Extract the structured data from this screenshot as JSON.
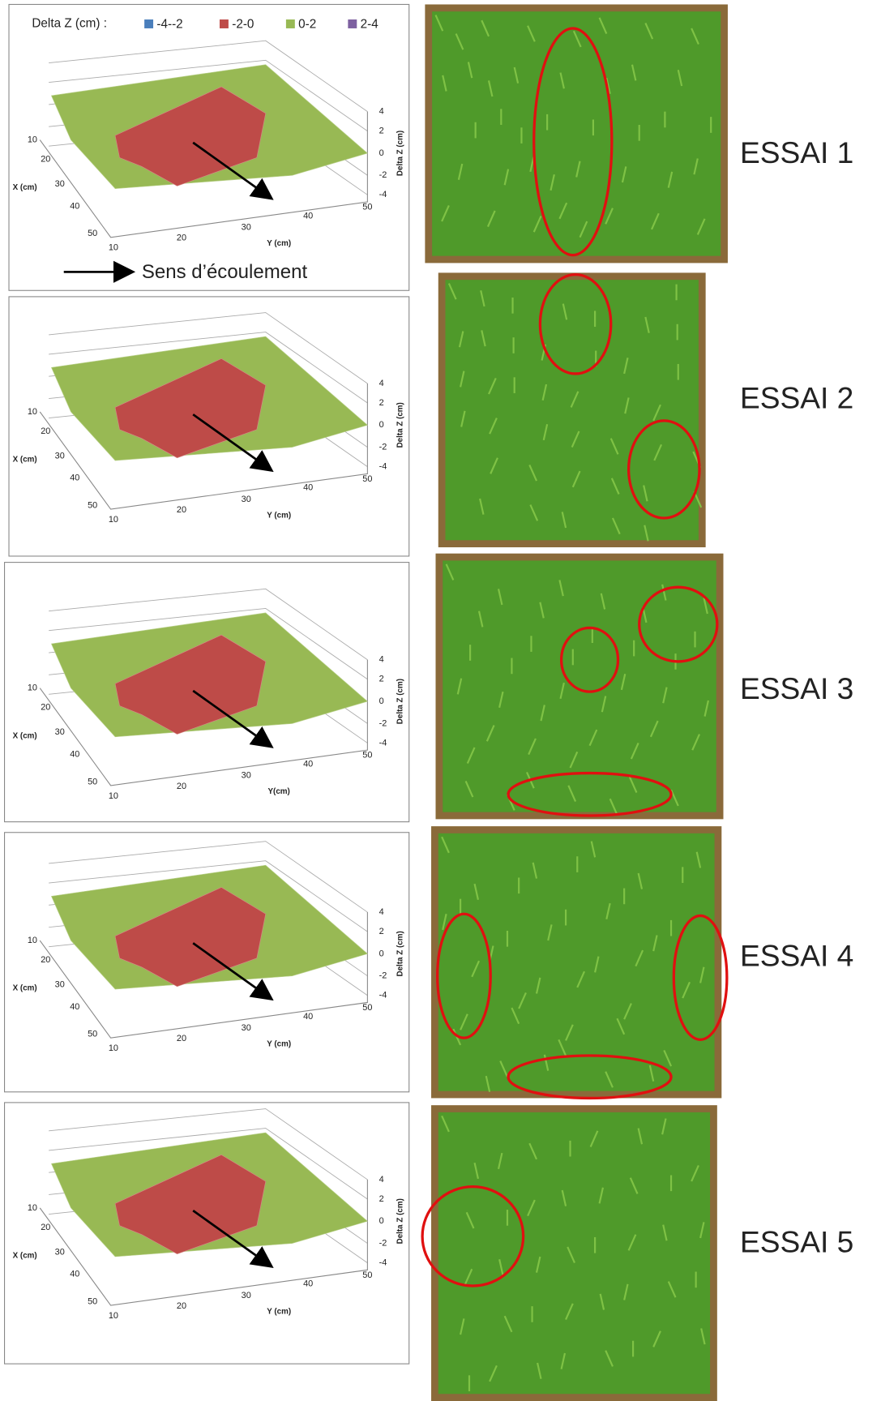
{
  "legend": {
    "title": "Delta Z (cm) :",
    "items": [
      {
        "label": "-4--2",
        "color": "#4a7ebb"
      },
      {
        "label": "-2-0",
        "color": "#be4b48"
      },
      {
        "label": "0-2",
        "color": "#98b954"
      },
      {
        "label": "2-4",
        "color": "#7d60a0"
      }
    ]
  },
  "flow_label": "Sens d’écoulement",
  "panels": [
    {
      "essai": "ESSAI 1",
      "x_axis_label": "X (cm)",
      "y_axis_label": "Y (cm)",
      "z_axis_label": "Delta Z (cm)",
      "x_ticks": [
        10,
        20,
        30,
        40,
        50
      ],
      "y_ticks": [
        10,
        20,
        30,
        40,
        50
      ],
      "z_ticks": [
        4,
        2,
        0,
        -2,
        -4
      ]
    },
    {
      "essai": "ESSAI 2",
      "x_axis_label": "X (cm)",
      "y_axis_label": "Y (cm)",
      "z_axis_label": "Delta Z (cm)",
      "x_ticks": [
        10,
        20,
        30,
        40,
        50
      ],
      "y_ticks": [
        10,
        20,
        30,
        40,
        50
      ],
      "z_ticks": [
        4,
        2,
        0,
        -2,
        -4
      ]
    },
    {
      "essai": "ESSAI 3",
      "x_axis_label": "X (cm)",
      "y_axis_label": "Y(cm)",
      "z_axis_label": "Delta Z (cm)",
      "x_ticks": [
        10,
        20,
        30,
        40,
        50
      ],
      "y_ticks": [
        10,
        20,
        30,
        40,
        50
      ],
      "z_ticks": [
        4,
        2,
        0,
        -2,
        -4
      ]
    },
    {
      "essai": "ESSAI 4",
      "x_axis_label": "X (cm)",
      "y_axis_label": "Y (cm)",
      "z_axis_label": "Delta Z (cm)",
      "x_ticks": [
        10,
        20,
        30,
        40,
        50
      ],
      "y_ticks": [
        10,
        20,
        30,
        40,
        50
      ],
      "z_ticks": [
        4,
        2,
        0,
        -2,
        -4
      ]
    },
    {
      "essai": "ESSAI 5",
      "x_axis_label": "X (cm)",
      "y_axis_label": "Y (cm)",
      "z_axis_label": "Delta Z (cm)",
      "x_ticks": [
        10,
        20,
        30,
        40,
        50
      ],
      "y_ticks": [
        10,
        20,
        30,
        40,
        50
      ],
      "z_ticks": [
        4,
        2,
        0,
        -2,
        -4
      ]
    }
  ]
}
